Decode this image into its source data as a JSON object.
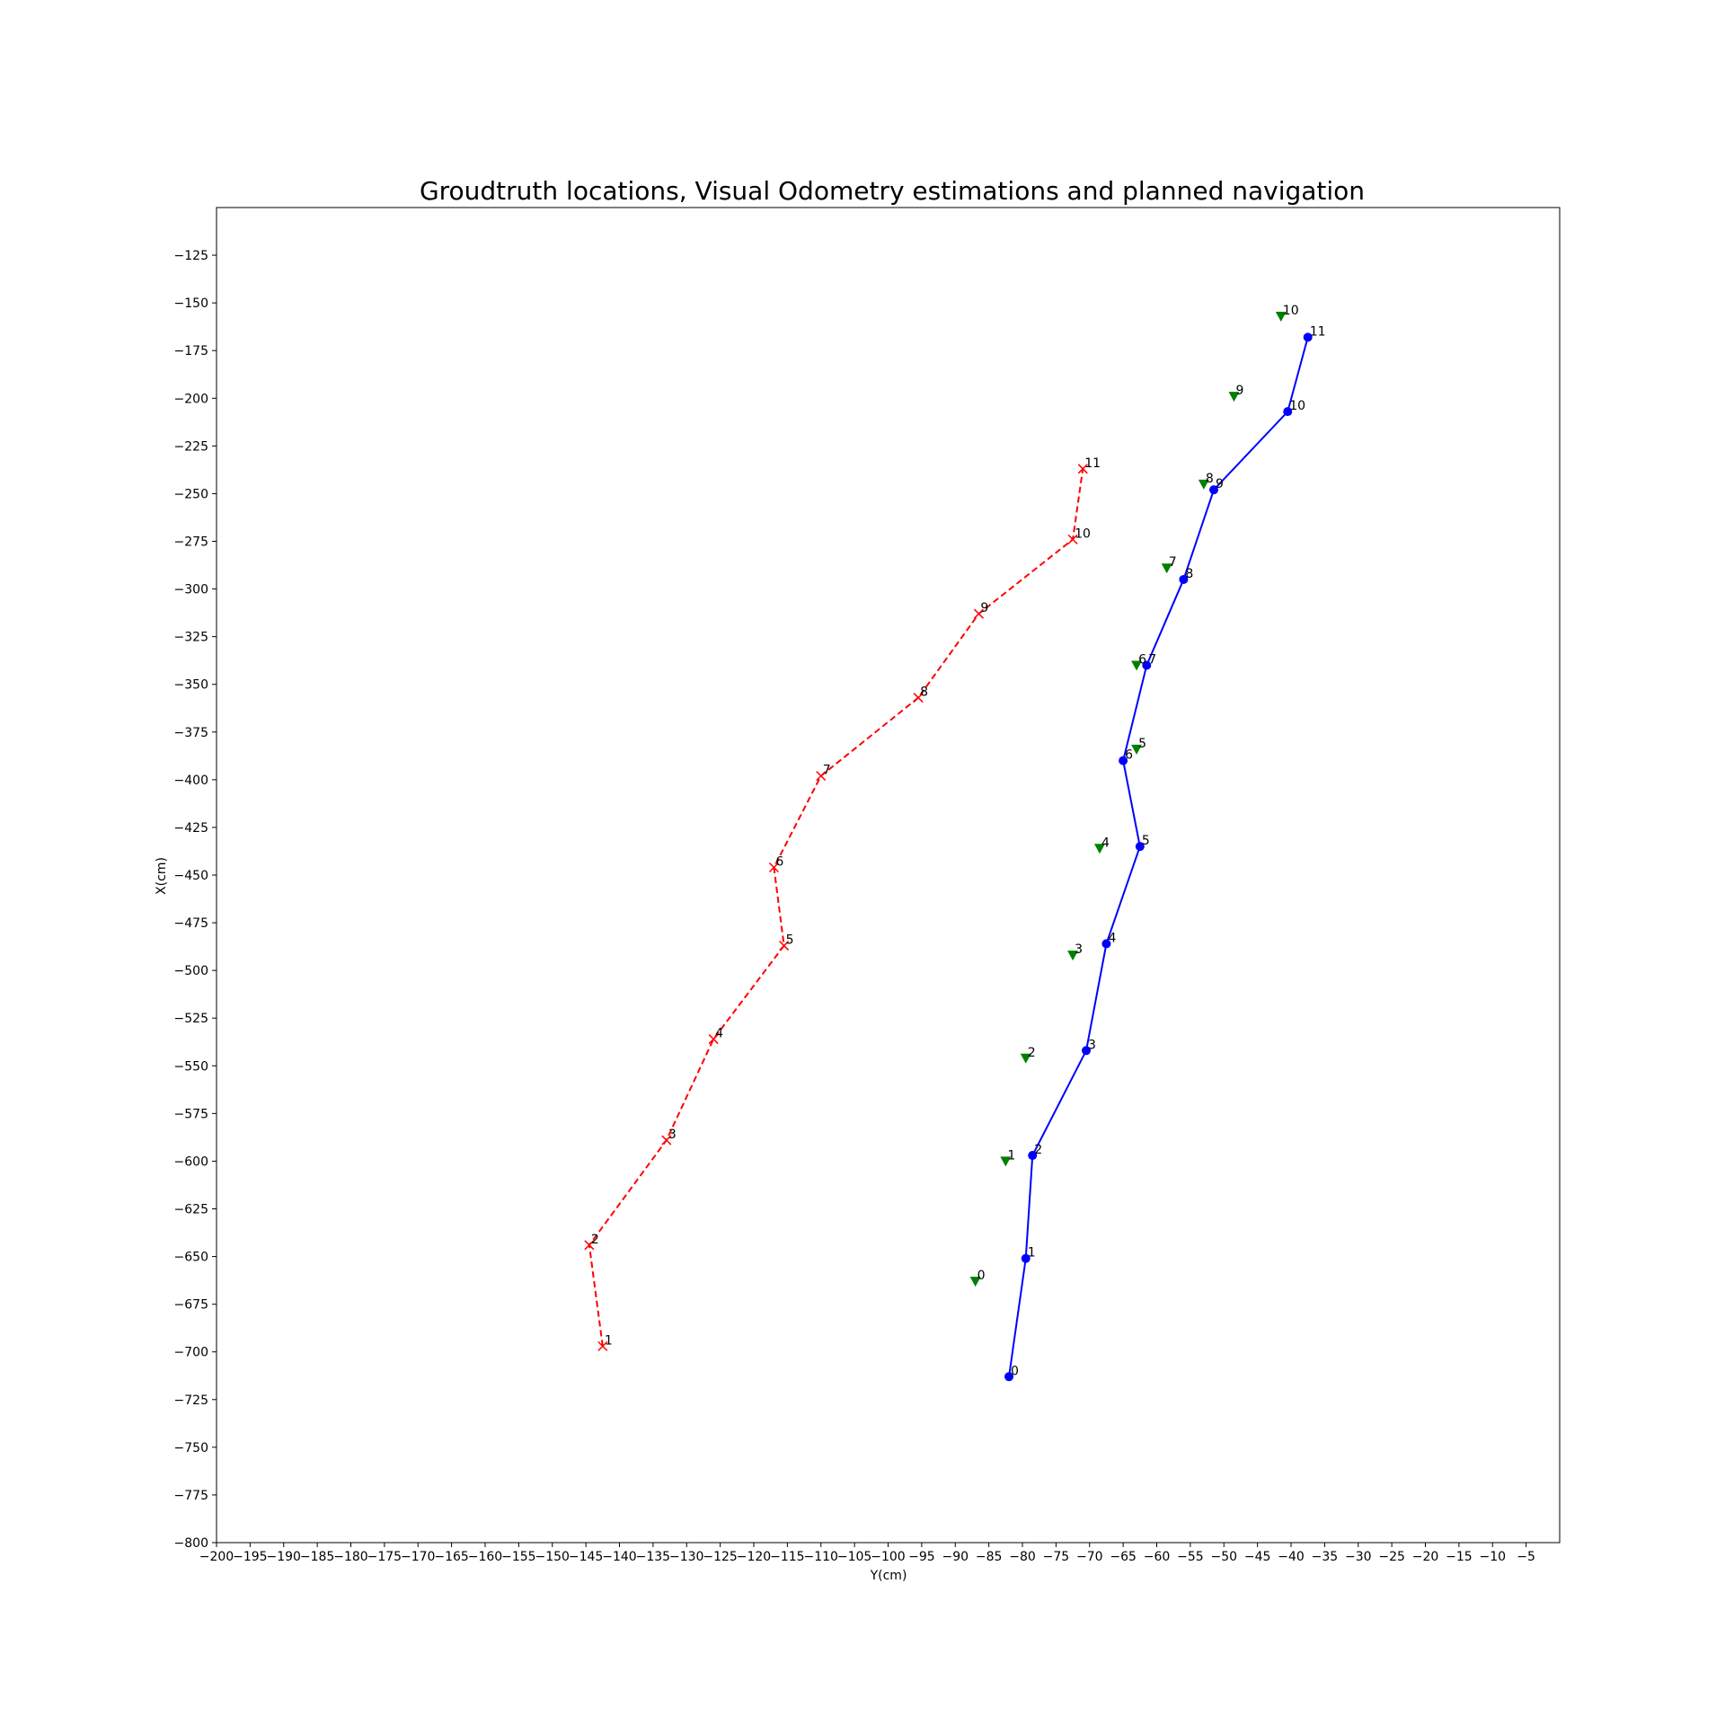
{
  "chart_data": {
    "type": "line",
    "title": "Groudtruth locations, Visual Odometry estimations and planned navigation",
    "xlabel": "Y(cm)",
    "ylabel": "X(cm)",
    "xlim": [
      -200,
      0
    ],
    "ylim": [
      -800,
      -100
    ],
    "x_ticks": [
      -200,
      -195,
      -190,
      -185,
      -180,
      -175,
      -170,
      -165,
      -160,
      -155,
      -150,
      -145,
      -140,
      -135,
      -130,
      -125,
      -120,
      -115,
      -110,
      -105,
      -100,
      -95,
      -90,
      -85,
      -80,
      -75,
      -70,
      -65,
      -60,
      -55,
      -50,
      -45,
      -40,
      -35,
      -30,
      -25,
      -20,
      -15,
      -10,
      -5
    ],
    "y_ticks": [
      -125,
      -150,
      -175,
      -200,
      -225,
      -250,
      -275,
      -300,
      -325,
      -350,
      -375,
      -400,
      -425,
      -450,
      -475,
      -500,
      -525,
      -550,
      -575,
      -600,
      -625,
      -650,
      -675,
      -700,
      -725,
      -750,
      -775,
      -800
    ],
    "grid": false,
    "series": [
      {
        "style": "red dashed line with x markers",
        "color": "#ff0000",
        "points": [
          {
            "label": "1",
            "x": -142.5,
            "y": -697
          },
          {
            "label": "2",
            "x": -144.5,
            "y": -644
          },
          {
            "label": "3",
            "x": -133,
            "y": -589
          },
          {
            "label": "4",
            "x": -126,
            "y": -536
          },
          {
            "label": "5",
            "x": -115.5,
            "y": -487
          },
          {
            "label": "6",
            "x": -117,
            "y": -446
          },
          {
            "label": "7",
            "x": -110,
            "y": -398
          },
          {
            "label": "8",
            "x": -95.5,
            "y": -357
          },
          {
            "label": "9",
            "x": -86.5,
            "y": -313
          },
          {
            "label": "10",
            "x": -72.5,
            "y": -274
          },
          {
            "label": "11",
            "x": -71,
            "y": -237
          }
        ]
      },
      {
        "style": "blue solid line with circle markers",
        "color": "#0000ff",
        "points": [
          {
            "label": "0",
            "x": -82,
            "y": -713
          },
          {
            "label": "1",
            "x": -79.5,
            "y": -651
          },
          {
            "label": "2",
            "x": -78.5,
            "y": -597
          },
          {
            "label": "3",
            "x": -70.5,
            "y": -542
          },
          {
            "label": "4",
            "x": -67.5,
            "y": -486
          },
          {
            "label": "5",
            "x": -62.5,
            "y": -435
          },
          {
            "label": "6",
            "x": -65,
            "y": -390
          },
          {
            "label": "7",
            "x": -61.5,
            "y": -340
          },
          {
            "label": "8",
            "x": -56,
            "y": -295
          },
          {
            "label": "9",
            "x": -51.5,
            "y": -248
          },
          {
            "label": "10",
            "x": -40.5,
            "y": -207
          },
          {
            "label": "11",
            "x": -37.5,
            "y": -168
          }
        ]
      },
      {
        "style": "green downward triangle markers, no line",
        "color": "#008000",
        "points": [
          {
            "label": "0",
            "x": -87,
            "y": -663
          },
          {
            "label": "1",
            "x": -82.5,
            "y": -600
          },
          {
            "label": "2",
            "x": -79.5,
            "y": -546
          },
          {
            "label": "3",
            "x": -72.5,
            "y": -492
          },
          {
            "label": "4",
            "x": -68.5,
            "y": -436
          },
          {
            "label": "5",
            "x": -63,
            "y": -384
          },
          {
            "label": "6",
            "x": -63,
            "y": -340
          },
          {
            "label": "7",
            "x": -58.5,
            "y": -289
          },
          {
            "label": "8",
            "x": -53,
            "y": -245
          },
          {
            "label": "9",
            "x": -48.5,
            "y": -199
          },
          {
            "label": "10",
            "x": -41.5,
            "y": -157
          }
        ]
      }
    ]
  }
}
